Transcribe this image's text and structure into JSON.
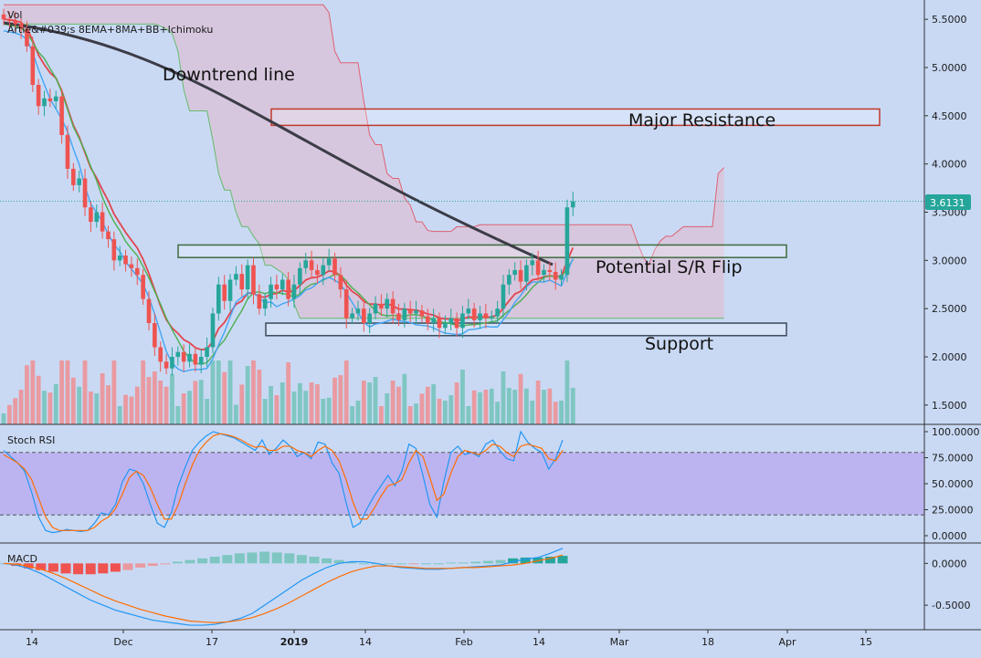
{
  "overlays": {
    "vol_label": "Vol",
    "indicator_label": "Artie&#039;s 8EMA+8MA+BB+Ichimoku"
  },
  "price_badge": "3.6131",
  "annotations": {
    "downtrend": "Downtrend line",
    "major_resistance": "Major Resistance",
    "sr_flip": "Potential S/R Flip",
    "support": "Support"
  },
  "panes": {
    "stoch_title": "Stoch RSI",
    "macd_title": "MACD"
  },
  "colors": {
    "background": "#c9d9f4",
    "up": "#26a69a",
    "down": "#ef5350",
    "vol_up": "#7fc6c2",
    "vol_down": "#e99aa0",
    "ema": "#e2454f",
    "ma": "#4caf50",
    "bb": "#42a5f5",
    "trend": "#3c3c46",
    "cloud": "#e0b8cc",
    "stoch_band": "#b7a7f0",
    "macd_line": "#2196f3",
    "signal_line": "#ff6d00"
  },
  "chart_data": [
    {
      "type": "candlestick",
      "ylim": [
        1.3,
        5.7
      ],
      "y_ticks": [
        "5.5000",
        "5.0000",
        "4.5000",
        "4.0000",
        "3.5000",
        "3.0000",
        "2.5000",
        "2.0000",
        "1.5000"
      ],
      "x_ticks": [
        "14",
        "Dec",
        "17",
        "2019",
        "14",
        "Feb",
        "14",
        "Mar",
        "18",
        "Apr",
        "15"
      ],
      "last_price": 3.6131,
      "zones": [
        {
          "label": "Major Resistance",
          "low": 4.4,
          "high": 4.57
        },
        {
          "label": "Potential S/R Flip",
          "low": 3.03,
          "high": 3.16
        },
        {
          "label": "Support",
          "low": 2.22,
          "high": 2.35
        }
      ],
      "close": [
        5.5,
        5.48,
        5.45,
        5.4,
        5.22,
        4.82,
        4.6,
        4.68,
        4.65,
        4.7,
        4.3,
        3.95,
        3.78,
        3.85,
        3.55,
        3.4,
        3.5,
        3.3,
        3.22,
        3.0,
        3.05,
        2.96,
        2.92,
        2.85,
        2.6,
        2.35,
        2.1,
        1.95,
        1.88,
        2.0,
        2.05,
        1.95,
        2.03,
        1.92,
        2.0,
        2.1,
        2.45,
        2.75,
        2.58,
        2.8,
        2.86,
        2.7,
        2.95,
        2.65,
        2.5,
        2.6,
        2.75,
        2.7,
        2.8,
        2.6,
        2.75,
        2.92,
        3.0,
        2.9,
        2.85,
        2.95,
        3.02,
        2.85,
        2.7,
        2.4,
        2.45,
        2.5,
        2.35,
        2.45,
        2.55,
        2.5,
        2.6,
        2.45,
        2.38,
        2.5,
        2.45,
        2.48,
        2.42,
        2.35,
        2.4,
        2.3,
        2.35,
        2.4,
        2.3,
        2.45,
        2.5,
        2.38,
        2.45,
        2.4,
        2.42,
        2.5,
        2.75,
        2.85,
        2.9,
        2.78,
        2.95,
        3.0,
        2.85,
        2.9,
        2.88,
        2.8,
        2.85,
        3.55,
        3.6131
      ]
    },
    {
      "type": "line",
      "title": "Stoch RSI",
      "ylim": [
        0,
        100
      ],
      "y_ticks": [
        "100.0000",
        "75.0000",
        "50.0000",
        "25.0000",
        "0.0000"
      ],
      "band": [
        20,
        80
      ],
      "k": [
        82,
        76,
        70,
        62,
        42,
        18,
        5,
        3,
        4,
        6,
        5,
        4,
        5,
        12,
        22,
        20,
        30,
        52,
        64,
        62,
        50,
        30,
        12,
        8,
        22,
        48,
        66,
        82,
        90,
        96,
        100,
        98,
        96,
        94,
        90,
        86,
        82,
        92,
        78,
        84,
        92,
        86,
        76,
        80,
        74,
        90,
        88,
        70,
        60,
        32,
        8,
        12,
        26,
        38,
        48,
        58,
        48,
        62,
        88,
        84,
        58,
        30,
        18,
        52,
        80,
        86,
        78,
        80,
        76,
        88,
        92,
        82,
        74,
        72,
        100,
        90,
        84,
        80,
        64,
        74,
        92
      ],
      "d": [
        78,
        74,
        70,
        64,
        54,
        36,
        18,
        8,
        5,
        5,
        5,
        5,
        5,
        8,
        14,
        18,
        26,
        40,
        56,
        62,
        58,
        46,
        30,
        16,
        16,
        30,
        50,
        68,
        82,
        90,
        96,
        98,
        97,
        95,
        92,
        88,
        85,
        86,
        82,
        82,
        86,
        86,
        82,
        80,
        76,
        82,
        86,
        82,
        72,
        54,
        32,
        16,
        16,
        26,
        38,
        48,
        50,
        54,
        70,
        82,
        76,
        56,
        34,
        40,
        60,
        76,
        82,
        80,
        78,
        82,
        88,
        86,
        80,
        76,
        86,
        88,
        86,
        84,
        74,
        72,
        82
      ]
    },
    {
      "type": "bar",
      "title": "MACD",
      "ylim": [
        -0.75,
        0.2
      ],
      "y_ticks": [
        "0.0000",
        "-0.5000"
      ],
      "macd": [
        0.0,
        -0.02,
        -0.06,
        -0.12,
        -0.2,
        -0.28,
        -0.36,
        -0.44,
        -0.5,
        -0.56,
        -0.6,
        -0.64,
        -0.68,
        -0.7,
        -0.72,
        -0.74,
        -0.74,
        -0.73,
        -0.7,
        -0.66,
        -0.6,
        -0.5,
        -0.4,
        -0.3,
        -0.2,
        -0.12,
        -0.05,
        0.0,
        0.02,
        0.02,
        0.0,
        -0.03,
        -0.05,
        -0.06,
        -0.07,
        -0.07,
        -0.06,
        -0.05,
        -0.04,
        -0.03,
        -0.02,
        0.02,
        0.05,
        0.07,
        0.12,
        0.18
      ],
      "signal": [
        0.0,
        -0.01,
        -0.03,
        -0.07,
        -0.12,
        -0.18,
        -0.25,
        -0.32,
        -0.39,
        -0.45,
        -0.5,
        -0.55,
        -0.59,
        -0.63,
        -0.66,
        -0.69,
        -0.7,
        -0.71,
        -0.7,
        -0.68,
        -0.65,
        -0.6,
        -0.54,
        -0.47,
        -0.39,
        -0.31,
        -0.23,
        -0.16,
        -0.1,
        -0.06,
        -0.03,
        -0.03,
        -0.04,
        -0.05,
        -0.06,
        -0.06,
        -0.06,
        -0.05,
        -0.05,
        -0.04,
        -0.03,
        -0.02,
        0.0,
        0.03,
        0.06,
        0.1
      ],
      "histogram": [
        0.0,
        -0.03,
        -0.06,
        -0.08,
        -0.1,
        -0.12,
        -0.13,
        -0.13,
        -0.12,
        -0.1,
        -0.08,
        -0.05,
        -0.03,
        -0.01,
        0.02,
        0.04,
        0.06,
        0.08,
        0.1,
        0.12,
        0.13,
        0.14,
        0.13,
        0.12,
        0.1,
        0.08,
        0.06,
        0.04,
        0.02,
        0.0,
        0.0,
        0.0,
        0.0,
        -0.01,
        0.0,
        0.0,
        0.01,
        0.01,
        0.02,
        0.03,
        0.04,
        0.06,
        0.07,
        0.07,
        0.08,
        0.09
      ]
    }
  ]
}
